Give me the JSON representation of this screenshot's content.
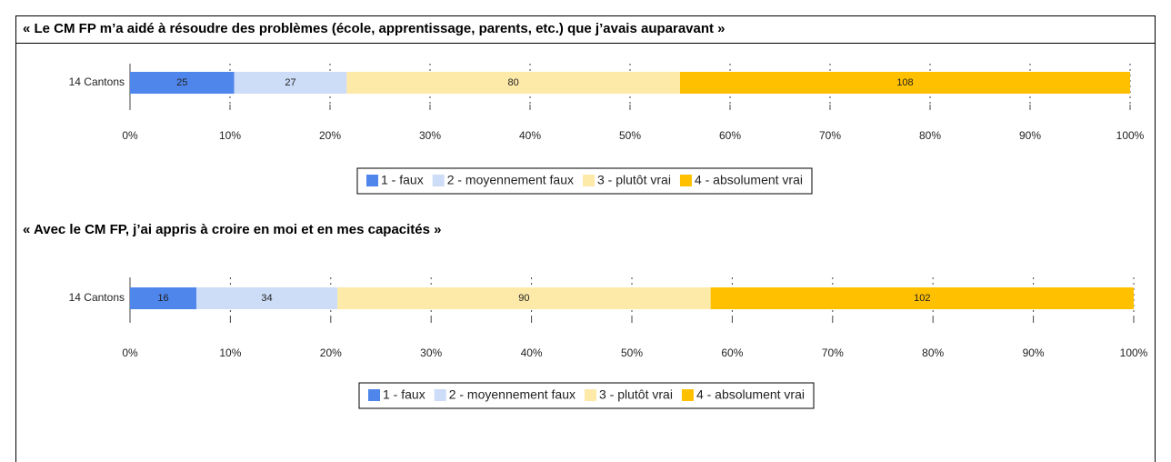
{
  "chart_data": [
    {
      "type": "bar",
      "stacking": "percent",
      "title": "« Le CM FP m’a aidé à résoudre des problèmes (école, apprentissage, parents, etc.) que j’avais auparavant »",
      "categories": [
        "14 Cantons"
      ],
      "series": [
        {
          "name": "1 - faux",
          "color": "#4f86ec",
          "values": [
            25
          ]
        },
        {
          "name": "2 - moyennement faux",
          "color": "#cddcf7",
          "values": [
            27
          ]
        },
        {
          "name": "3 - plutôt vrai",
          "color": "#fde9a8",
          "values": [
            80
          ]
        },
        {
          "name": "4 - absolument vrai",
          "color": "#ffc000",
          "values": [
            108
          ]
        }
      ],
      "xlim": [
        0,
        100
      ],
      "xticks": [
        {
          "value": 0,
          "label": "0%"
        },
        {
          "value": 10,
          "label": "10%"
        },
        {
          "value": 20,
          "label": "20%"
        },
        {
          "value": 30,
          "label": "30%"
        },
        {
          "value": 40,
          "label": "40%"
        },
        {
          "value": 50,
          "label": "50%"
        },
        {
          "value": 60,
          "label": "60%"
        },
        {
          "value": 70,
          "label": "70%"
        },
        {
          "value": 80,
          "label": "80%"
        },
        {
          "value": 90,
          "label": "90%"
        },
        {
          "value": 100,
          "label": "100%"
        }
      ],
      "grid": true,
      "legend": "bottom"
    },
    {
      "type": "bar",
      "stacking": "percent",
      "title": "« Avec le CM FP, j’ai appris à croire en moi et en mes capacités »",
      "categories": [
        "14 Cantons"
      ],
      "series": [
        {
          "name": "1 - faux",
          "color": "#4f86ec",
          "values": [
            16
          ]
        },
        {
          "name": "2 - moyennement faux",
          "color": "#cddcf7",
          "values": [
            34
          ]
        },
        {
          "name": "3 - plutôt vrai",
          "color": "#fde9a8",
          "values": [
            90
          ]
        },
        {
          "name": "4 - absolument vrai",
          "color": "#ffc000",
          "values": [
            102
          ]
        }
      ],
      "xlim": [
        0,
        100
      ],
      "xticks": [
        {
          "value": 0,
          "label": "0%"
        },
        {
          "value": 10,
          "label": "10%"
        },
        {
          "value": 20,
          "label": "20%"
        },
        {
          "value": 30,
          "label": "30%"
        },
        {
          "value": 40,
          "label": "40%"
        },
        {
          "value": 50,
          "label": "50%"
        },
        {
          "value": 60,
          "label": "60%"
        },
        {
          "value": 70,
          "label": "70%"
        },
        {
          "value": 80,
          "label": "80%"
        },
        {
          "value": 90,
          "label": "90%"
        },
        {
          "value": 100,
          "label": "100%"
        }
      ],
      "grid": true,
      "legend": "bottom"
    }
  ]
}
